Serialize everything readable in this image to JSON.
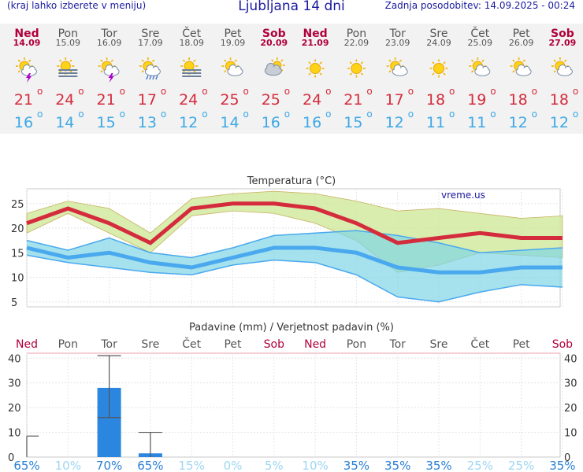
{
  "header": {
    "hint": "(kraj lahko izberete v meniju)",
    "title": "Ljubljana 14 dni",
    "updated": "Zadnja posodobitev: 14.09.2025 - 00:24"
  },
  "days": [
    {
      "day": "Ned",
      "date": "14.09",
      "icon": "sun-cloud-thunder-icon",
      "max": "21",
      "min": "16",
      "weekend": true
    },
    {
      "day": "Pon",
      "date": "15.09",
      "icon": "sun-fog-icon",
      "max": "24",
      "min": "14",
      "weekend": false
    },
    {
      "day": "Tor",
      "date": "16.09",
      "icon": "sun-cloud-thunder-icon",
      "max": "21",
      "min": "15",
      "weekend": false
    },
    {
      "day": "Sre",
      "date": "17.09",
      "icon": "sun-cloud-rain-icon",
      "max": "17",
      "min": "13",
      "weekend": false
    },
    {
      "day": "Čet",
      "date": "18.09",
      "icon": "sun-fog-icon",
      "max": "24",
      "min": "12",
      "weekend": false
    },
    {
      "day": "Pet",
      "date": "19.09",
      "icon": "sun-cloud-icon",
      "max": "25",
      "min": "14",
      "weekend": false
    },
    {
      "day": "Sob",
      "date": "20.09",
      "icon": "cloud-sun-icon",
      "max": "25",
      "min": "16",
      "weekend": true
    },
    {
      "day": "Ned",
      "date": "21.09",
      "icon": "sun-icon",
      "max": "24",
      "min": "16",
      "weekend": true
    },
    {
      "day": "Pon",
      "date": "22.09",
      "icon": "sun-icon",
      "max": "21",
      "min": "15",
      "weekend": false
    },
    {
      "day": "Tor",
      "date": "23.09",
      "icon": "sun-cloud-icon",
      "max": "17",
      "min": "12",
      "weekend": false
    },
    {
      "day": "Sre",
      "date": "24.09",
      "icon": "sun-icon",
      "max": "18",
      "min": "11",
      "weekend": false
    },
    {
      "day": "Čet",
      "date": "25.09",
      "icon": "sun-cloud-icon",
      "max": "19",
      "min": "11",
      "weekend": false
    },
    {
      "day": "Pet",
      "date": "26.09",
      "icon": "sun-cloud-icon",
      "max": "18",
      "min": "12",
      "weekend": false
    },
    {
      "day": "Sob",
      "date": "27.09",
      "icon": "sun-cloud-icon",
      "max": "18",
      "min": "12",
      "weekend": true
    }
  ],
  "colors": {
    "max": "#d42c3c",
    "min": "#3ca8e6",
    "weekend": "#b0003a",
    "weekday": "#555555",
    "pct_high": "#2a7fd4",
    "pct_low": "#9fd6f2",
    "bar": "#2b86e0"
  },
  "chart_data": [
    {
      "type": "line",
      "title": "Temperatura (°C)",
      "watermark": "vreme.us",
      "ylim": [
        4,
        28
      ],
      "yticks": [
        5,
        10,
        15,
        20,
        25
      ],
      "series": [
        {
          "name": "Max",
          "values": [
            21,
            24,
            21,
            17,
            24,
            25,
            25,
            24,
            21,
            17,
            18,
            19,
            18,
            18
          ]
        },
        {
          "name": "Min",
          "values": [
            16,
            14,
            15,
            13,
            12,
            14,
            16,
            16,
            15,
            12,
            11,
            11,
            12,
            12
          ]
        },
        {
          "name": "Max range low",
          "values": [
            19,
            23,
            19,
            15,
            22.5,
            23.5,
            23,
            21,
            17.5,
            11,
            12.5,
            15,
            14.5,
            14
          ]
        },
        {
          "name": "Max range high",
          "values": [
            23,
            25.5,
            24,
            19,
            26,
            27,
            27.5,
            27,
            25.5,
            23.5,
            24,
            23,
            22,
            22.5
          ]
        },
        {
          "name": "Min range low",
          "values": [
            14.5,
            13,
            12,
            11,
            10.5,
            12.5,
            13.5,
            13,
            10.5,
            6,
            5,
            7,
            8.5,
            8
          ]
        },
        {
          "name": "Min range high",
          "values": [
            17.5,
            15.5,
            18,
            15,
            14,
            16,
            18.5,
            19,
            19.5,
            18.5,
            17,
            15,
            15.5,
            16
          ]
        }
      ]
    },
    {
      "type": "bar",
      "title": "Padavine (mm) / Verjetnost padavin (%)",
      "ylim": [
        0,
        42
      ],
      "yticks": [
        0,
        10,
        20,
        30,
        40
      ],
      "categories": [
        "Ned",
        "Pon",
        "Tor",
        "Sre",
        "Čet",
        "Pet",
        "Sob",
        "Ned",
        "Pon",
        "Tor",
        "Sre",
        "Čet",
        "Pet",
        "Sob"
      ],
      "values": [
        0,
        0,
        28,
        1.5,
        0,
        0,
        0,
        0,
        0,
        0,
        0,
        0,
        0,
        0
      ],
      "error_low": [
        0,
        0,
        16,
        0,
        0,
        0,
        0,
        0,
        0,
        0,
        0,
        0,
        0,
        0
      ],
      "error_high": [
        8.5,
        0,
        41,
        10,
        0,
        0,
        0,
        0,
        0,
        0,
        0,
        0,
        0,
        0
      ],
      "probabilities": [
        "65%",
        "10%",
        "70%",
        "65%",
        "15%",
        "0%",
        "5%",
        "10%",
        "35%",
        "35%",
        "35%",
        "25%",
        "25%",
        "35%"
      ]
    }
  ]
}
